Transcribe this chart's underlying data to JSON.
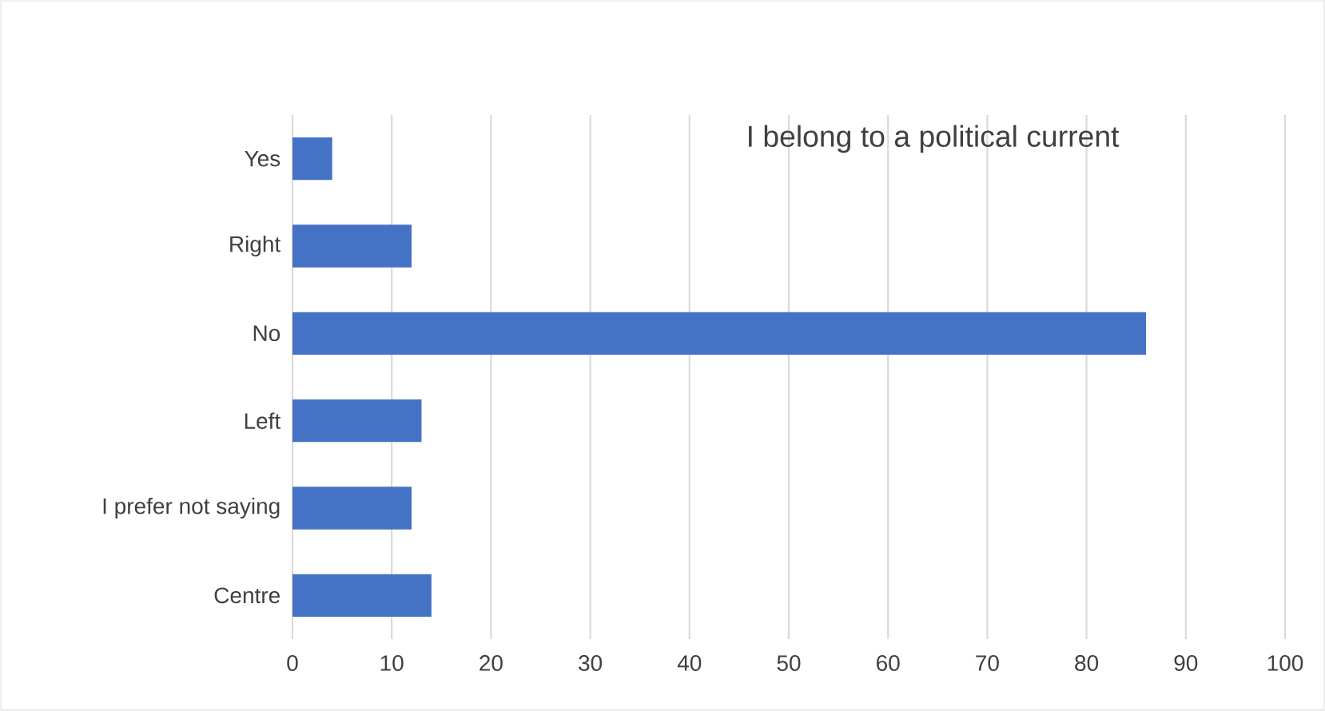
{
  "chart_data": {
    "type": "bar",
    "orientation": "horizontal",
    "title": "I belong to a political current",
    "categories": [
      "Yes",
      "Right",
      "No",
      "Left",
      "I prefer not saying",
      "Centre"
    ],
    "values": [
      4,
      12,
      86,
      13,
      12,
      14
    ],
    "color": "#4472c4",
    "xlim": [
      0,
      100
    ],
    "xticks": [
      0,
      10,
      20,
      30,
      40,
      50,
      60,
      70,
      80,
      90,
      100
    ],
    "grid": "x"
  }
}
